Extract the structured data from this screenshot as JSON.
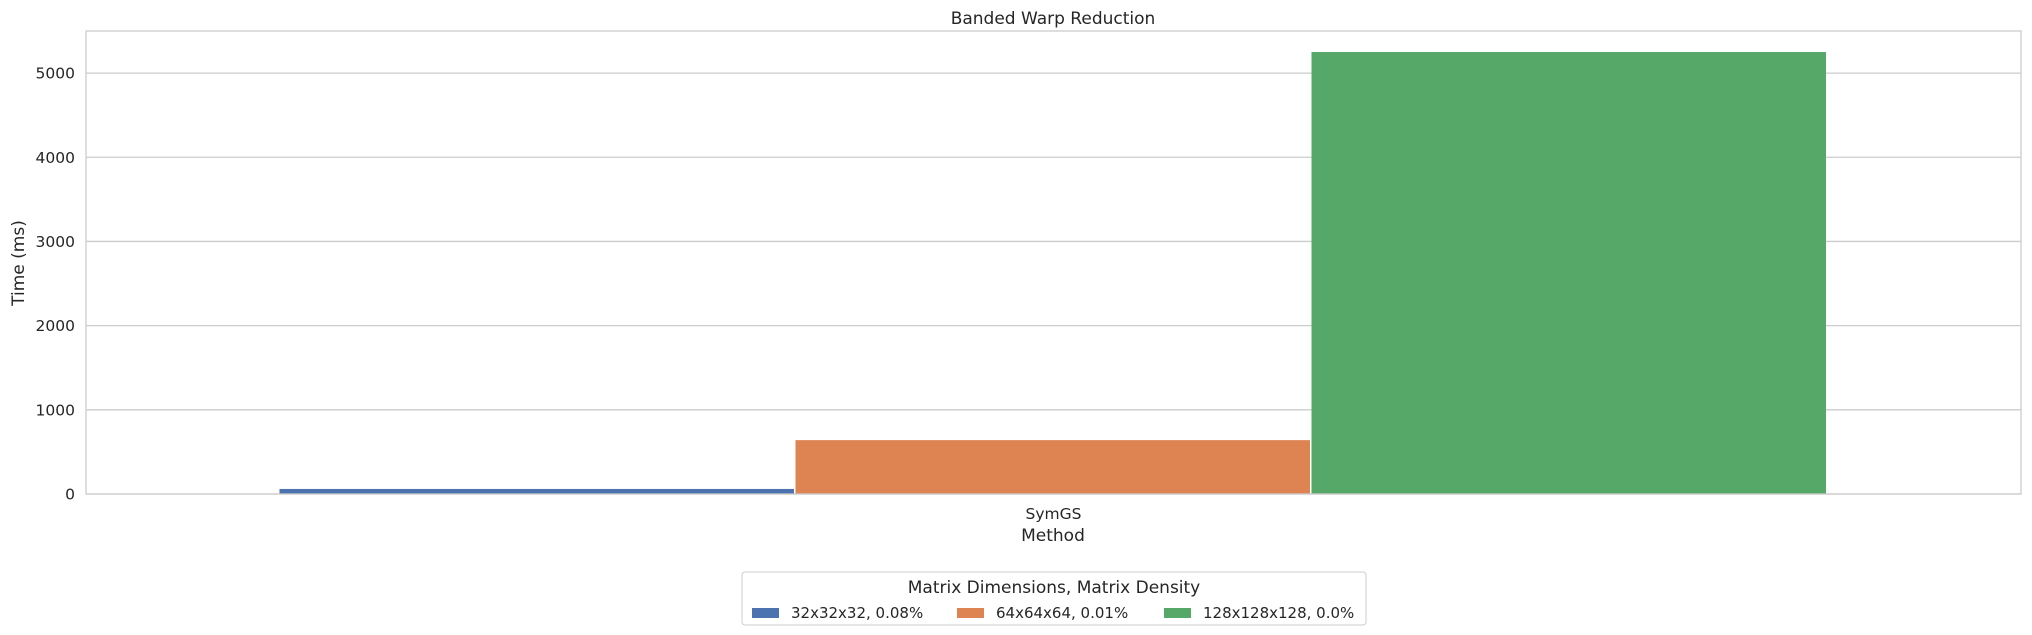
{
  "chart_data": {
    "type": "bar",
    "title": "Banded Warp Reduction",
    "xlabel": "Method",
    "ylabel": "Time (ms)",
    "categories": [
      "SymGS"
    ],
    "series": [
      {
        "name": "32x32x32, 0.08%",
        "color": "#4c72b0",
        "values": [
          60
        ]
      },
      {
        "name": "64x64x64, 0.01%",
        "color": "#dd8452",
        "values": [
          640
        ]
      },
      {
        "name": "128x128x128, 0.0%",
        "color": "#55a868",
        "values": [
          5250
        ]
      }
    ],
    "ylim": [
      0,
      5500
    ],
    "yticks": [
      0,
      1000,
      2000,
      3000,
      4000,
      5000
    ],
    "grid": true,
    "legend": {
      "title": "Matrix Dimensions, Matrix Density",
      "placement": "bottom-center"
    }
  }
}
